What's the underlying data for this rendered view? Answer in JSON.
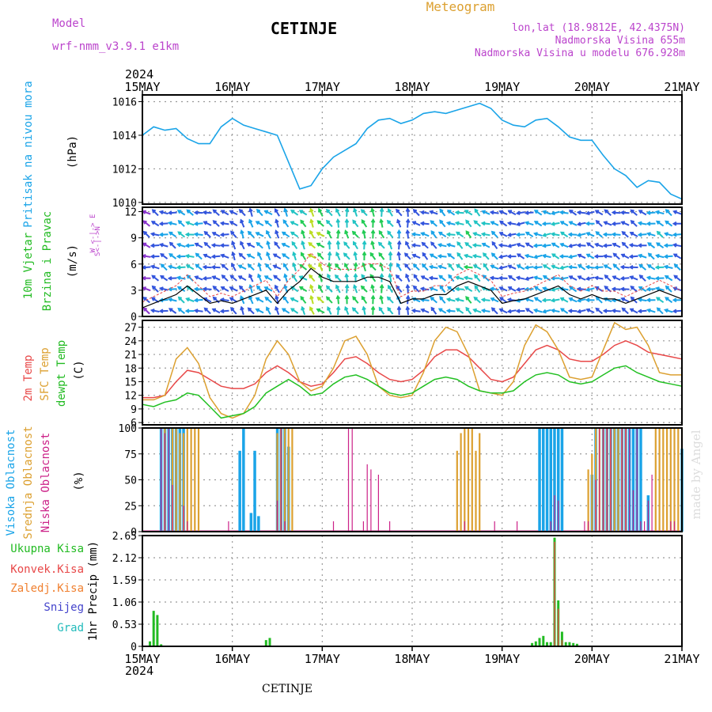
{
  "header": {
    "model_label": "Model",
    "model_name": "wrf-nmm_v3.9.1 e1km",
    "location": "CETINJE",
    "meteogram_label": "Meteogram",
    "lonlat": "lon,lat (18.9812E, 42.4375N)",
    "elevation": "Nadmorska Visina 655m",
    "model_elevation": "Nadmorska Visina u modelu 676.928m",
    "footer_location": "CETINJE",
    "watermark": "made by Angel"
  },
  "time_axis": {
    "year": "2024",
    "dates": [
      "15MAY",
      "16MAY",
      "17MAY",
      "18MAY",
      "19MAY",
      "20MAY",
      "21MAY"
    ]
  },
  "colors": {
    "pressure": "#1aa4e8",
    "wind_label": "#22bb22",
    "wind_dir_label": "#bb44cc",
    "temp2m": "#e84848",
    "sfc": "#dca030",
    "dewpt": "#22c022",
    "high_cloud": "#1aa4e8",
    "mid_cloud": "#dca030",
    "low_cloud": "#cc2288",
    "total_precip": "#22bb22",
    "conv_precip": "#e84848",
    "frozen_precip": "#f08030",
    "snow": "#4444cc",
    "hail": "#22bbbb"
  },
  "panels": {
    "pressure": {
      "label": "Pritisak na nivou mora",
      "unit": "(hPa)",
      "ticks": [
        "1016",
        "1014",
        "1012",
        "1010"
      ]
    },
    "wind": {
      "label1": "10m Vjetar",
      "label2": "Brzina i Pravac",
      "unit": "(m/s)",
      "dir_label": "W <-|-> E",
      "dir_label2": "S<-|->N",
      "ticks": [
        "12",
        "9",
        "6",
        "3",
        "0"
      ]
    },
    "temp": {
      "label_2m": "2m Temp",
      "label_sfc": "SFC Temp",
      "label_dew": "dewpt Temp",
      "unit": "(C)",
      "ticks": [
        "27",
        "24",
        "21",
        "18",
        "15",
        "12",
        "9",
        "6"
      ]
    },
    "cloud": {
      "label_high": "Visoka Oblacnost",
      "label_mid": "Srednja Oblacnost",
      "label_low": "Niska Oblacnost",
      "unit": "(%)",
      "ticks": [
        "100",
        "75",
        "50",
        "25",
        "0"
      ]
    },
    "precip": {
      "label": "1hr Precip (mm)",
      "ticks": [
        "2.65",
        "2.12",
        "1.59",
        "1.06",
        "0.53",
        "0"
      ],
      "legend": [
        "Ukupna Kisa",
        "Konvek.Kisa",
        "Zaledj.Kisa",
        "Snijeg",
        "Grad"
      ]
    }
  },
  "chart_data": [
    {
      "type": "line",
      "title": "",
      "ylabel": "Pritisak na nivou mora (hPa)",
      "ylim": [
        1009.9,
        1016.4
      ],
      "x_unit": "hours since 15MAY 00:00",
      "series": [
        {
          "name": "Pritisak na nivou mora",
          "x": [
            0,
            3,
            6,
            9,
            12,
            15,
            18,
            21,
            24,
            27,
            30,
            33,
            36,
            39,
            42,
            45,
            48,
            51,
            54,
            57,
            60,
            63,
            66,
            69,
            72,
            75,
            78,
            81,
            84,
            87,
            90,
            93,
            96,
            99,
            102,
            105,
            108,
            111,
            114,
            117,
            120,
            123,
            126,
            129,
            132,
            135,
            138,
            141,
            144
          ],
          "values": [
            1014.0,
            1014.5,
            1014.3,
            1014.4,
            1013.8,
            1013.5,
            1013.5,
            1014.5,
            1015.0,
            1014.6,
            1014.4,
            1014.2,
            1014.0,
            1012.4,
            1010.8,
            1011.0,
            1012.0,
            1012.7,
            1013.1,
            1013.5,
            1014.4,
            1014.9,
            1015.0,
            1014.7,
            1014.9,
            1015.3,
            1015.4,
            1015.3,
            1015.5,
            1015.7,
            1015.9,
            1015.6,
            1014.9,
            1014.6,
            1014.5,
            1014.9,
            1015.0,
            1014.5,
            1013.9,
            1013.7,
            1013.7,
            1012.8,
            1012.0,
            1011.6,
            1010.9,
            1011.3,
            1011.2,
            1010.5,
            1010.2
          ]
        }
      ]
    },
    {
      "type": "line",
      "title": "",
      "ylabel": "10m Vjetar Brzina i Pravac (m/s)",
      "ylim": [
        0,
        12.5
      ],
      "x_unit": "hours since 15MAY 00:00",
      "series": [
        {
          "name": "wind speed",
          "x": [
            0,
            3,
            6,
            9,
            12,
            15,
            18,
            21,
            24,
            27,
            30,
            33,
            36,
            39,
            42,
            45,
            48,
            51,
            54,
            57,
            60,
            63,
            66,
            69,
            72,
            75,
            78,
            81,
            84,
            87,
            90,
            93,
            96,
            99,
            102,
            105,
            108,
            111,
            114,
            117,
            120,
            123,
            126,
            129,
            132,
            135,
            138,
            141,
            144
          ],
          "values": [
            1.0,
            1.5,
            2.0,
            2.5,
            3.5,
            2.5,
            1.5,
            1.8,
            1.5,
            2.0,
            2.5,
            3.0,
            1.5,
            3.0,
            4.0,
            5.5,
            4.5,
            4.0,
            4.0,
            4.0,
            4.5,
            4.5,
            4.0,
            1.5,
            2.0,
            2.0,
            2.5,
            2.5,
            3.5,
            4.0,
            3.5,
            3.0,
            1.5,
            1.8,
            2.0,
            2.5,
            3.0,
            3.5,
            2.5,
            2.0,
            2.5,
            2.0,
            2.0,
            1.5,
            2.0,
            2.5,
            3.0,
            2.5,
            2.0
          ]
        }
      ]
    },
    {
      "type": "line",
      "title": "",
      "ylabel": "(C)",
      "ylim": [
        5.5,
        28.5
      ],
      "x_unit": "hours since 15MAY 00:00",
      "series": [
        {
          "name": "2m Temp",
          "x": [
            0,
            3,
            6,
            9,
            12,
            15,
            18,
            21,
            24,
            27,
            30,
            33,
            36,
            39,
            42,
            45,
            48,
            51,
            54,
            57,
            60,
            63,
            66,
            69,
            72,
            75,
            78,
            81,
            84,
            87,
            90,
            93,
            96,
            99,
            102,
            105,
            108,
            111,
            114,
            117,
            120,
            123,
            126,
            129,
            132,
            135,
            138,
            141,
            144
          ],
          "values": [
            11.5,
            11.5,
            12.0,
            15.0,
            17.5,
            17.0,
            15.5,
            14.0,
            13.5,
            13.5,
            14.5,
            17.0,
            18.5,
            17.0,
            15.0,
            14.0,
            14.5,
            17.0,
            20.0,
            20.5,
            19.0,
            17.0,
            15.5,
            15.0,
            15.5,
            17.5,
            20.5,
            22.0,
            22.0,
            20.5,
            18.0,
            15.5,
            15.0,
            16.0,
            19.0,
            22.0,
            23.0,
            22.0,
            20.0,
            19.5,
            19.5,
            21.0,
            23.0,
            24.0,
            23.0,
            21.5,
            21.0,
            20.5,
            20.0
          ]
        },
        {
          "name": "SFC Temp",
          "x": [
            0,
            3,
            6,
            9,
            12,
            15,
            18,
            21,
            24,
            27,
            30,
            33,
            36,
            39,
            42,
            45,
            48,
            51,
            54,
            57,
            60,
            63,
            66,
            69,
            72,
            75,
            78,
            81,
            84,
            87,
            90,
            93,
            96,
            99,
            102,
            105,
            108,
            111,
            114,
            117,
            120,
            123,
            126,
            129,
            132,
            135,
            138,
            141,
            144
          ],
          "values": [
            11.0,
            11.0,
            12.0,
            20.0,
            22.5,
            19.0,
            11.5,
            8.0,
            7.0,
            8.0,
            12.0,
            20.0,
            24.0,
            21.0,
            15.0,
            13.0,
            14.0,
            18.0,
            24.0,
            25.0,
            21.0,
            14.0,
            12.0,
            11.5,
            12.0,
            17.0,
            24.0,
            27.0,
            26.0,
            21.0,
            13.0,
            12.5,
            12.0,
            15.0,
            23.0,
            27.5,
            26.0,
            22.0,
            16.0,
            15.5,
            16.0,
            22.0,
            28.0,
            26.5,
            27.0,
            23.0,
            17.0,
            16.5,
            16.5
          ]
        },
        {
          "name": "dewpt Temp",
          "x": [
            0,
            3,
            6,
            9,
            12,
            15,
            18,
            21,
            24,
            27,
            30,
            33,
            36,
            39,
            42,
            45,
            48,
            51,
            54,
            57,
            60,
            63,
            66,
            69,
            72,
            75,
            78,
            81,
            84,
            87,
            90,
            93,
            96,
            99,
            102,
            105,
            108,
            111,
            114,
            117,
            120,
            123,
            126,
            129,
            132,
            135,
            138,
            141,
            144
          ],
          "values": [
            10.0,
            9.5,
            10.5,
            11.0,
            12.5,
            12.0,
            9.5,
            7.0,
            7.5,
            8.0,
            9.5,
            12.5,
            14.0,
            15.5,
            14.0,
            12.0,
            12.5,
            14.5,
            16.0,
            16.5,
            15.5,
            14.0,
            12.5,
            12.0,
            12.5,
            14.0,
            15.5,
            16.0,
            15.5,
            14.0,
            13.0,
            12.5,
            12.5,
            13.0,
            15.0,
            16.5,
            17.0,
            16.5,
            15.0,
            14.5,
            15.0,
            16.5,
            18.0,
            18.5,
            17.0,
            16.0,
            15.0,
            14.5,
            14.0
          ]
        }
      ]
    },
    {
      "type": "bar",
      "title": "",
      "ylabel": "(%)",
      "ylim": [
        0,
        100
      ],
      "x_unit": "hours since 15MAY 00:00",
      "series": [
        {
          "name": "Visoka Oblacnost",
          "x": [
            5,
            6,
            7,
            8,
            9,
            10,
            11,
            26,
            27,
            29,
            30,
            31,
            32,
            35,
            36,
            37,
            38,
            39,
            106,
            107,
            108,
            109,
            110,
            111,
            112,
            120,
            121,
            123,
            124,
            125,
            126,
            127,
            128,
            129,
            130,
            131,
            132,
            133,
            134,
            135,
            144
          ],
          "values": [
            100,
            100,
            100,
            100,
            100,
            100,
            100,
            78,
            100,
            18,
            78,
            15,
            0,
            0,
            100,
            100,
            100,
            82,
            100,
            100,
            100,
            100,
            100,
            100,
            100,
            55,
            100,
            100,
            100,
            100,
            100,
            100,
            100,
            100,
            100,
            100,
            100,
            100,
            0,
            35,
            80
          ]
        },
        {
          "name": "Srednja Oblacnost",
          "x": [
            6,
            8,
            9,
            10,
            11,
            12,
            13,
            14,
            15,
            36,
            37,
            38,
            39,
            40,
            84,
            85,
            86,
            87,
            88,
            89,
            90,
            119,
            120,
            121,
            122,
            123,
            124,
            125,
            126,
            127,
            128,
            129,
            137,
            138,
            139,
            140,
            141,
            142,
            143,
            144
          ],
          "values": [
            100,
            100,
            100,
            95,
            95,
            100,
            100,
            100,
            100,
            95,
            100,
            100,
            100,
            100,
            78,
            95,
            100,
            100,
            100,
            78,
            95,
            60,
            75,
            100,
            100,
            100,
            100,
            100,
            100,
            100,
            100,
            100,
            100,
            100,
            100,
            100,
            100,
            100,
            100,
            100
          ]
        },
        {
          "name": "Niska Oblacnost",
          "x": [
            0,
            5,
            6,
            7,
            8,
            11,
            12,
            23,
            36,
            37,
            38,
            51,
            55,
            56,
            59,
            60,
            61,
            63,
            66,
            86,
            94,
            100,
            109,
            110,
            111,
            118,
            119,
            121,
            122,
            123,
            124,
            125,
            128,
            129,
            130,
            131,
            132,
            133,
            134,
            135,
            136,
            141,
            142
          ],
          "values": [
            100,
            100,
            95,
            100,
            45,
            25,
            10,
            10,
            30,
            100,
            10,
            10,
            100,
            100,
            10,
            65,
            60,
            55,
            10,
            10,
            10,
            10,
            10,
            35,
            30,
            10,
            10,
            50,
            100,
            100,
            100,
            100,
            100,
            100,
            100,
            40,
            100,
            10,
            10,
            30,
            55,
            10,
            10
          ]
        }
      ]
    },
    {
      "type": "bar",
      "title": "",
      "ylabel": "1hr Precip (mm)",
      "ylim": [
        0,
        2.65
      ],
      "x_unit": "hours since 15MAY 00:00",
      "series": [
        {
          "name": "Ukupna Kisa",
          "x": [
            2,
            3,
            4,
            5,
            33,
            34,
            104,
            105,
            106,
            107,
            108,
            109,
            110,
            111,
            112,
            113,
            114,
            115,
            116
          ],
          "values": [
            0.12,
            0.85,
            0.75,
            0.05,
            0.15,
            0.2,
            0.08,
            0.12,
            0.2,
            0.25,
            0.1,
            0.1,
            2.6,
            1.1,
            0.35,
            0.1,
            0.1,
            0.08,
            0.06
          ]
        },
        {
          "name": "Konvek.Kisa",
          "x": [
            110,
            111,
            112
          ],
          "values": [
            2.5,
            0.9,
            0.15
          ]
        }
      ]
    }
  ]
}
